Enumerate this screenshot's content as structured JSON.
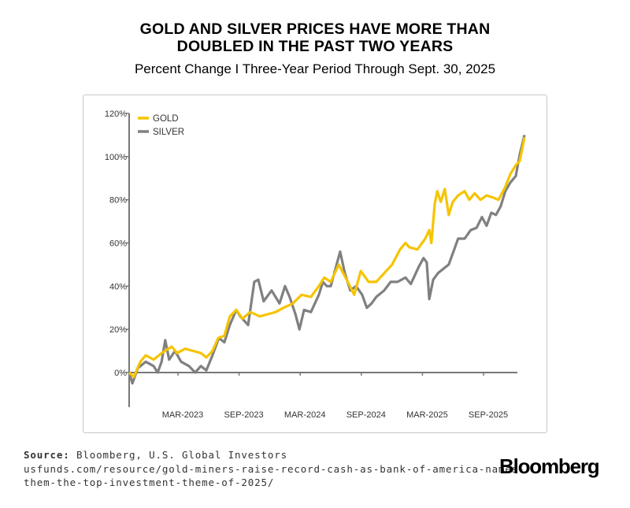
{
  "title_line1": "GOLD AND SILVER PRICES HAVE MORE THAN",
  "title_line2": "DOUBLED IN THE PAST TWO YEARS",
  "subtitle": "Percent Change I Three-Year Period Through Sept. 30, 2025",
  "source_label": "Source:",
  "source_text": "Bloomberg, U.S. Global Investors",
  "source_url_line1": "usfunds.com/resource/gold-miners-raise-record-cash-as-bank-of-america-names-",
  "source_url_line2": "them-the-top-investment-theme-of-2025/",
  "logo": "Bloomberg",
  "chart_data": {
    "type": "line",
    "title": "",
    "xlabel": "",
    "ylabel": "",
    "ylim": [
      -16,
      120
    ],
    "xlim": [
      "2022-09-30",
      "2025-09-30"
    ],
    "y_ticks": [
      0,
      20,
      40,
      60,
      80,
      100,
      120
    ],
    "y_tick_labels": [
      "0%",
      "20%",
      "40%",
      "60%",
      "80%",
      "100%",
      "120%"
    ],
    "x_tick_labels": [
      "MAR-2023",
      "SEP-2023",
      "MAR-2024",
      "SEP-2024",
      "MAR-2025",
      "SEP-2025"
    ],
    "grid": false,
    "legend": "top-left",
    "series": [
      {
        "name": "GOLD",
        "color": "#f5c400",
        "points": [
          [
            "2022-09-30",
            0
          ],
          [
            "2022-10-13",
            -2
          ],
          [
            "2022-10-31",
            5
          ],
          [
            "2022-11-15",
            8
          ],
          [
            "2022-12-07",
            6
          ],
          [
            "2022-12-29",
            9
          ],
          [
            "2023-01-26",
            12
          ],
          [
            "2023-02-10",
            9
          ],
          [
            "2023-03-04",
            11
          ],
          [
            "2023-03-26",
            10
          ],
          [
            "2023-04-17",
            9
          ],
          [
            "2023-05-02",
            7
          ],
          [
            "2023-05-19",
            10
          ],
          [
            "2023-06-04",
            16
          ],
          [
            "2023-06-21",
            17
          ],
          [
            "2023-07-06",
            26
          ],
          [
            "2023-07-24",
            29
          ],
          [
            "2023-08-10",
            25
          ],
          [
            "2023-09-01",
            28
          ],
          [
            "2023-09-27",
            26
          ],
          [
            "2023-10-19",
            27
          ],
          [
            "2023-11-10",
            28
          ],
          [
            "2023-12-02",
            30
          ],
          [
            "2023-12-28",
            32
          ],
          [
            "2024-01-21",
            36
          ],
          [
            "2024-02-16",
            35
          ],
          [
            "2024-03-09",
            40
          ],
          [
            "2024-03-24",
            44
          ],
          [
            "2024-04-11",
            42
          ],
          [
            "2024-05-03",
            50
          ],
          [
            "2024-05-25",
            43
          ],
          [
            "2024-06-15",
            36
          ],
          [
            "2024-07-03",
            47
          ],
          [
            "2024-07-25",
            42
          ],
          [
            "2024-08-15",
            42
          ],
          [
            "2024-09-06",
            46
          ],
          [
            "2024-09-28",
            50
          ],
          [
            "2024-10-20",
            57
          ],
          [
            "2024-11-04",
            60
          ],
          [
            "2024-11-15",
            58
          ],
          [
            "2024-12-07",
            57
          ],
          [
            "2024-12-29",
            62
          ],
          [
            "2025-01-09",
            66
          ],
          [
            "2025-01-15",
            60
          ],
          [
            "2025-01-24",
            78
          ],
          [
            "2025-01-31",
            84
          ],
          [
            "2025-02-10",
            79
          ],
          [
            "2025-02-21",
            85
          ],
          [
            "2025-03-04",
            73
          ],
          [
            "2025-03-15",
            79
          ],
          [
            "2025-03-30",
            82
          ],
          [
            "2025-04-17",
            84
          ],
          [
            "2025-04-30",
            80
          ],
          [
            "2025-05-15",
            83
          ],
          [
            "2025-05-31",
            80
          ],
          [
            "2025-06-17",
            82
          ],
          [
            "2025-07-05",
            81
          ],
          [
            "2025-07-20",
            80
          ],
          [
            "2025-08-08",
            86
          ],
          [
            "2025-08-22",
            92
          ],
          [
            "2025-09-06",
            96
          ],
          [
            "2025-09-17",
            98
          ],
          [
            "2025-09-30",
            109
          ]
        ]
      },
      {
        "name": "SILVER",
        "color": "#808080",
        "points": [
          [
            "2022-09-30",
            0
          ],
          [
            "2022-10-09",
            -5
          ],
          [
            "2022-10-24",
            2
          ],
          [
            "2022-11-15",
            5
          ],
          [
            "2022-12-07",
            3
          ],
          [
            "2022-12-18",
            0
          ],
          [
            "2022-12-29",
            5
          ],
          [
            "2023-01-08",
            15
          ],
          [
            "2023-01-19",
            6
          ],
          [
            "2023-02-04",
            10
          ],
          [
            "2023-02-21",
            5
          ],
          [
            "2023-03-15",
            3
          ],
          [
            "2023-04-01",
            0
          ],
          [
            "2023-04-17",
            3
          ],
          [
            "2023-05-02",
            1
          ],
          [
            "2023-05-19",
            8
          ],
          [
            "2023-06-06",
            16
          ],
          [
            "2023-06-21",
            14
          ],
          [
            "2023-07-06",
            22
          ],
          [
            "2023-07-24",
            29
          ],
          [
            "2023-08-04",
            26
          ],
          [
            "2023-08-26",
            22
          ],
          [
            "2023-09-12",
            42
          ],
          [
            "2023-09-23",
            43
          ],
          [
            "2023-10-08",
            33
          ],
          [
            "2023-10-30",
            38
          ],
          [
            "2023-11-21",
            32
          ],
          [
            "2023-12-06",
            40
          ],
          [
            "2023-12-19",
            35
          ],
          [
            "2024-01-04",
            27
          ],
          [
            "2024-01-15",
            20
          ],
          [
            "2024-01-28",
            29
          ],
          [
            "2024-02-16",
            28
          ],
          [
            "2024-03-09",
            36
          ],
          [
            "2024-03-20",
            42
          ],
          [
            "2024-03-31",
            40
          ],
          [
            "2024-04-11",
            40
          ],
          [
            "2024-05-07",
            56
          ],
          [
            "2024-05-20",
            46
          ],
          [
            "2024-06-04",
            38
          ],
          [
            "2024-06-20",
            40
          ],
          [
            "2024-07-07",
            36
          ],
          [
            "2024-07-20",
            30
          ],
          [
            "2024-08-02",
            32
          ],
          [
            "2024-08-15",
            35
          ],
          [
            "2024-09-06",
            38
          ],
          [
            "2024-09-24",
            42
          ],
          [
            "2024-10-13",
            42
          ],
          [
            "2024-11-04",
            44
          ],
          [
            "2024-11-19",
            41
          ],
          [
            "2024-12-11",
            49
          ],
          [
            "2024-12-24",
            53
          ],
          [
            "2025-01-02",
            51
          ],
          [
            "2025-01-09",
            34
          ],
          [
            "2025-01-20",
            43
          ],
          [
            "2025-02-02",
            46
          ],
          [
            "2025-02-17",
            48
          ],
          [
            "2025-03-04",
            50
          ],
          [
            "2025-03-17",
            56
          ],
          [
            "2025-03-30",
            62
          ],
          [
            "2025-04-17",
            62
          ],
          [
            "2025-05-04",
            66
          ],
          [
            "2025-05-20",
            67
          ],
          [
            "2025-06-04",
            72
          ],
          [
            "2025-06-17",
            68
          ],
          [
            "2025-06-30",
            74
          ],
          [
            "2025-07-13",
            73
          ],
          [
            "2025-07-26",
            77
          ],
          [
            "2025-08-08",
            84
          ],
          [
            "2025-08-22",
            88
          ],
          [
            "2025-09-06",
            91
          ],
          [
            "2025-09-17",
            101
          ],
          [
            "2025-09-30",
            110
          ]
        ]
      }
    ]
  }
}
